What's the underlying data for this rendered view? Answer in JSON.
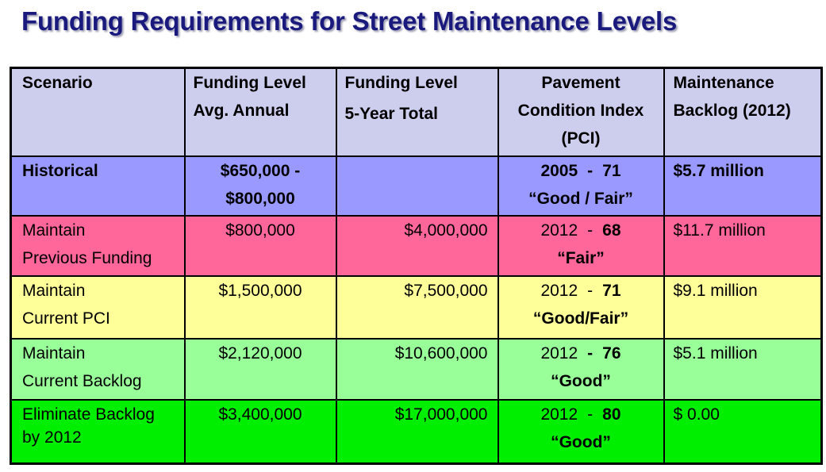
{
  "title": "Funding Requirements for Street Maintenance Levels",
  "headers": {
    "scenario": "Scenario",
    "avg_annual_1": "Funding Level",
    "avg_annual_2": "Avg. Annual",
    "five_year_1": "Funding Level",
    "five_year_2": "5-Year Total",
    "pci_1": "Pavement",
    "pci_2": "Condition Index",
    "pci_3": "(PCI)",
    "backlog_1": "Maintenance",
    "backlog_2": "Backlog (2012)"
  },
  "rows": [
    {
      "scenario_1": "Historical",
      "scenario_2": "",
      "avg_1": "$650,000 -",
      "avg_2": "$800,000",
      "total": "",
      "pci_year": "2005",
      "pci_value": "71",
      "pci_rating": "“Good / Fair”",
      "backlog": "$5.7 million",
      "color": "#9999ff"
    },
    {
      "scenario_1": "Maintain",
      "scenario_2": "Previous Funding",
      "avg_1": "$800,000",
      "avg_2": "",
      "total": "$4,000,000",
      "pci_year": "2012",
      "pci_value": "68",
      "pci_rating": "“Fair”",
      "backlog": "$11.7 million",
      "color": "#ff6699"
    },
    {
      "scenario_1": "Maintain",
      "scenario_2": "Current PCI",
      "avg_1": "$1,500,000",
      "avg_2": "",
      "total": "$7,500,000",
      "pci_year": "2012",
      "pci_value": "71",
      "pci_rating": "“Good/Fair”",
      "backlog": "$9.1 million",
      "color": "#ffff99"
    },
    {
      "scenario_1": "Maintain",
      "scenario_2": "Current Backlog",
      "avg_1": "$2,120,000",
      "avg_2": "",
      "total": "$10,600,000",
      "pci_year": "2012",
      "pci_value": "76",
      "pci_rating": "“Good”",
      "backlog": "$5.1 million",
      "color": "#99ff99"
    },
    {
      "scenario_1": "Eliminate Backlog",
      "scenario_2": "by 2012",
      "avg_1": "$3,400,000",
      "avg_2": "",
      "total": "$17,000,000",
      "pci_year": "2012",
      "pci_value": "80",
      "pci_rating": "“Good”",
      "backlog": "$ 0.00",
      "color": "#00ee00"
    }
  ]
}
